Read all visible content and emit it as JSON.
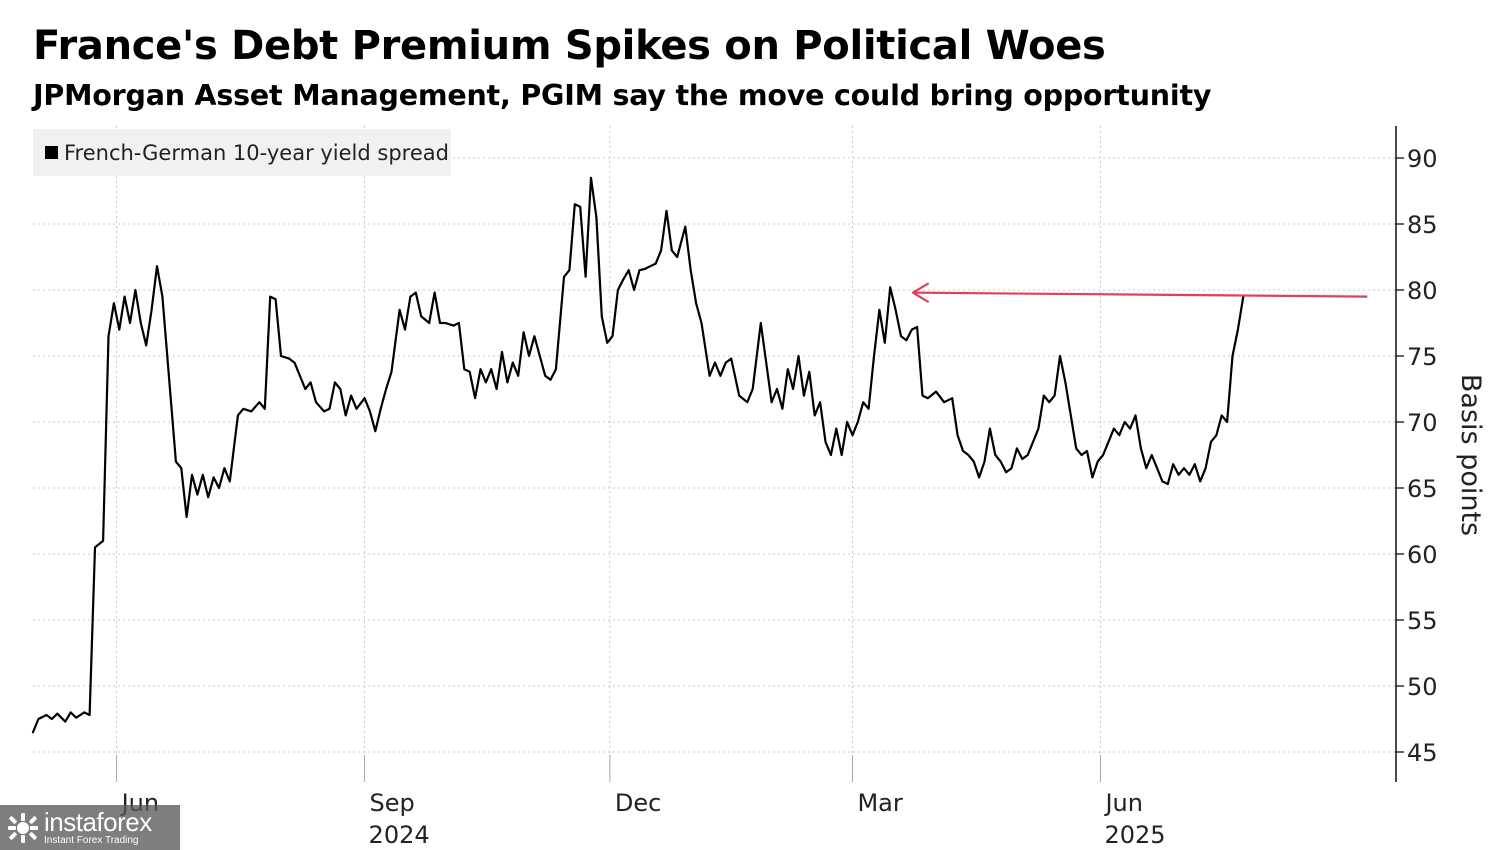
{
  "header": {
    "title": "France's Debt Premium Spikes on Political Woes",
    "subtitle": "JPMorgan Asset Management, PGIM say the move could bring opportunity"
  },
  "colors": {
    "line": "#000000",
    "arrow": "#e0405a",
    "grid": "#c8c8c8",
    "legend_bg": "#f1f1f1"
  },
  "watermark": {
    "name": "instaforex",
    "tagline": "Instant Forex Trading"
  },
  "chart_data": {
    "type": "line",
    "title": "France's Debt Premium Spikes on Political Woes",
    "subtitle": "JPMorgan Asset Management, PGIM say the move could bring opportunity",
    "xlabel": "",
    "ylabel": "Basis points",
    "ylim": [
      42,
      92
    ],
    "yticks": [
      45,
      50,
      55,
      60,
      65,
      70,
      75,
      80,
      85,
      90
    ],
    "xlim": [
      "2024-05-01",
      "2025-09-09"
    ],
    "xticks": [
      {
        "date": "2024-06-01",
        "label": "Jun",
        "year": ""
      },
      {
        "date": "2024-09-01",
        "label": "Sep",
        "year": "2024"
      },
      {
        "date": "2024-12-01",
        "label": "Dec",
        "year": ""
      },
      {
        "date": "2025-03-01",
        "label": "Mar",
        "year": ""
      },
      {
        "date": "2025-06-01",
        "label": "Jun",
        "year": "2025"
      }
    ],
    "y_axis_position": "right",
    "grid": "dotted",
    "legend_position": "top-left",
    "annotation": {
      "type": "arrow",
      "from": [
        "2025-09-08",
        79.5
      ],
      "to": [
        "2025-03-16",
        79.8
      ]
    },
    "series": [
      {
        "name": "French-German 10-year yield spread",
        "points": [
          [
            "2024-05-01",
            46.5
          ],
          [
            "2024-05-03",
            47.5
          ],
          [
            "2024-05-06",
            47.8
          ],
          [
            "2024-05-08",
            47.5
          ],
          [
            "2024-05-10",
            47.9
          ],
          [
            "2024-05-13",
            47.3
          ],
          [
            "2024-05-15",
            48.0
          ],
          [
            "2024-05-17",
            47.6
          ],
          [
            "2024-05-20",
            48.0
          ],
          [
            "2024-05-22",
            47.8
          ],
          [
            "2024-05-24",
            60.5
          ],
          [
            "2024-05-27",
            61.0
          ],
          [
            "2024-05-29",
            76.5
          ],
          [
            "2024-05-31",
            79.0
          ],
          [
            "2024-06-02",
            77.0
          ],
          [
            "2024-06-04",
            79.5
          ],
          [
            "2024-06-06",
            77.5
          ],
          [
            "2024-06-08",
            80.0
          ],
          [
            "2024-06-10",
            77.5
          ],
          [
            "2024-06-12",
            75.8
          ],
          [
            "2024-06-14",
            78.5
          ],
          [
            "2024-06-16",
            81.8
          ],
          [
            "2024-06-18",
            79.5
          ],
          [
            "2024-06-21",
            72.0
          ],
          [
            "2024-06-23",
            67.0
          ],
          [
            "2024-06-25",
            66.5
          ],
          [
            "2024-06-27",
            62.8
          ],
          [
            "2024-06-29",
            66.0
          ],
          [
            "2024-07-01",
            64.5
          ],
          [
            "2024-07-03",
            66.0
          ],
          [
            "2024-07-05",
            64.3
          ],
          [
            "2024-07-07",
            65.8
          ],
          [
            "2024-07-09",
            65.0
          ],
          [
            "2024-07-11",
            66.5
          ],
          [
            "2024-07-13",
            65.5
          ],
          [
            "2024-07-16",
            70.5
          ],
          [
            "2024-07-18",
            71.0
          ],
          [
            "2024-07-21",
            70.8
          ],
          [
            "2024-07-24",
            71.5
          ],
          [
            "2024-07-26",
            71.0
          ],
          [
            "2024-07-28",
            79.5
          ],
          [
            "2024-07-30",
            79.3
          ],
          [
            "2024-08-01",
            75.0
          ],
          [
            "2024-08-04",
            74.8
          ],
          [
            "2024-08-06",
            74.5
          ],
          [
            "2024-08-08",
            73.5
          ],
          [
            "2024-08-10",
            72.5
          ],
          [
            "2024-08-12",
            73.0
          ],
          [
            "2024-08-14",
            71.5
          ],
          [
            "2024-08-17",
            70.8
          ],
          [
            "2024-08-19",
            71.0
          ],
          [
            "2024-08-21",
            73.0
          ],
          [
            "2024-08-23",
            72.5
          ],
          [
            "2024-08-25",
            70.5
          ],
          [
            "2024-08-27",
            72.0
          ],
          [
            "2024-08-29",
            71.0
          ],
          [
            "2024-09-01",
            71.8
          ],
          [
            "2024-09-03",
            70.8
          ],
          [
            "2024-09-05",
            69.3
          ],
          [
            "2024-09-07",
            71.0
          ],
          [
            "2024-09-09",
            72.5
          ],
          [
            "2024-09-11",
            73.8
          ],
          [
            "2024-09-14",
            78.5
          ],
          [
            "2024-09-16",
            77.0
          ],
          [
            "2024-09-18",
            79.5
          ],
          [
            "2024-09-20",
            79.8
          ],
          [
            "2024-09-22",
            78.0
          ],
          [
            "2024-09-25",
            77.5
          ],
          [
            "2024-09-27",
            79.8
          ],
          [
            "2024-09-29",
            77.5
          ],
          [
            "2024-10-01",
            77.5
          ],
          [
            "2024-10-04",
            77.3
          ],
          [
            "2024-10-06",
            77.5
          ],
          [
            "2024-10-08",
            74.0
          ],
          [
            "2024-10-10",
            73.8
          ],
          [
            "2024-10-12",
            71.8
          ],
          [
            "2024-10-14",
            74.0
          ],
          [
            "2024-10-16",
            73.0
          ],
          [
            "2024-10-18",
            74.0
          ],
          [
            "2024-10-20",
            72.5
          ],
          [
            "2024-10-22",
            75.3
          ],
          [
            "2024-10-24",
            73.0
          ],
          [
            "2024-10-26",
            74.5
          ],
          [
            "2024-10-28",
            73.5
          ],
          [
            "2024-10-30",
            76.8
          ],
          [
            "2024-11-01",
            75.0
          ],
          [
            "2024-11-03",
            76.5
          ],
          [
            "2024-11-05",
            75.0
          ],
          [
            "2024-11-07",
            73.5
          ],
          [
            "2024-11-09",
            73.2
          ],
          [
            "2024-11-11",
            74.0
          ],
          [
            "2024-11-14",
            81.0
          ],
          [
            "2024-11-16",
            81.5
          ],
          [
            "2024-11-18",
            86.5
          ],
          [
            "2024-11-20",
            86.3
          ],
          [
            "2024-11-22",
            81.0
          ],
          [
            "2024-11-24",
            88.5
          ],
          [
            "2024-11-26",
            85.5
          ],
          [
            "2024-11-28",
            78.0
          ],
          [
            "2024-11-30",
            76.0
          ],
          [
            "2024-12-02",
            76.5
          ],
          [
            "2024-12-04",
            80.0
          ],
          [
            "2024-12-06",
            80.8
          ],
          [
            "2024-12-08",
            81.5
          ],
          [
            "2024-12-10",
            80.0
          ],
          [
            "2024-12-12",
            81.5
          ],
          [
            "2024-12-14",
            81.6
          ],
          [
            "2024-12-16",
            81.8
          ],
          [
            "2024-12-18",
            82.0
          ],
          [
            "2024-12-20",
            83.0
          ],
          [
            "2024-12-22",
            86.0
          ],
          [
            "2024-12-24",
            83.0
          ],
          [
            "2024-12-26",
            82.5
          ],
          [
            "2024-12-29",
            84.8
          ],
          [
            "2024-12-31",
            81.5
          ],
          [
            "2025-01-02",
            79.0
          ],
          [
            "2025-01-04",
            77.5
          ],
          [
            "2025-01-07",
            73.5
          ],
          [
            "2025-01-09",
            74.5
          ],
          [
            "2025-01-11",
            73.5
          ],
          [
            "2025-01-13",
            74.5
          ],
          [
            "2025-01-15",
            74.8
          ],
          [
            "2025-01-18",
            72.0
          ],
          [
            "2025-01-21",
            71.5
          ],
          [
            "2025-01-23",
            72.5
          ],
          [
            "2025-01-26",
            77.5
          ],
          [
            "2025-01-28",
            74.5
          ],
          [
            "2025-01-30",
            71.5
          ],
          [
            "2025-02-01",
            72.5
          ],
          [
            "2025-02-03",
            71.0
          ],
          [
            "2025-02-05",
            74.0
          ],
          [
            "2025-02-07",
            72.5
          ],
          [
            "2025-02-09",
            75.0
          ],
          [
            "2025-02-11",
            72.0
          ],
          [
            "2025-02-13",
            73.8
          ],
          [
            "2025-02-15",
            70.5
          ],
          [
            "2025-02-17",
            71.5
          ],
          [
            "2025-02-19",
            68.5
          ],
          [
            "2025-02-21",
            67.5
          ],
          [
            "2025-02-23",
            69.5
          ],
          [
            "2025-02-25",
            67.5
          ],
          [
            "2025-02-27",
            70.0
          ],
          [
            "2025-03-01",
            69.0
          ],
          [
            "2025-03-03",
            70.0
          ],
          [
            "2025-03-05",
            71.5
          ],
          [
            "2025-03-07",
            71.0
          ],
          [
            "2025-03-09",
            75.0
          ],
          [
            "2025-03-11",
            78.5
          ],
          [
            "2025-03-13",
            76.0
          ],
          [
            "2025-03-15",
            80.2
          ],
          [
            "2025-03-17",
            78.5
          ],
          [
            "2025-03-19",
            76.5
          ],
          [
            "2025-03-21",
            76.2
          ],
          [
            "2025-03-23",
            77.0
          ],
          [
            "2025-03-25",
            77.2
          ],
          [
            "2025-03-27",
            72.0
          ],
          [
            "2025-03-29",
            71.8
          ],
          [
            "2025-04-01",
            72.3
          ],
          [
            "2025-04-04",
            71.5
          ],
          [
            "2025-04-07",
            71.8
          ],
          [
            "2025-04-09",
            69.0
          ],
          [
            "2025-04-11",
            67.8
          ],
          [
            "2025-04-13",
            67.5
          ],
          [
            "2025-04-15",
            67.0
          ],
          [
            "2025-04-17",
            65.8
          ],
          [
            "2025-04-19",
            67.0
          ],
          [
            "2025-04-21",
            69.5
          ],
          [
            "2025-04-23",
            67.5
          ],
          [
            "2025-04-25",
            67.0
          ],
          [
            "2025-04-27",
            66.2
          ],
          [
            "2025-04-29",
            66.5
          ],
          [
            "2025-05-01",
            68.0
          ],
          [
            "2025-05-03",
            67.2
          ],
          [
            "2025-05-05",
            67.5
          ],
          [
            "2025-05-07",
            68.5
          ],
          [
            "2025-05-09",
            69.5
          ],
          [
            "2025-05-11",
            72.0
          ],
          [
            "2025-05-13",
            71.5
          ],
          [
            "2025-05-15",
            72.0
          ],
          [
            "2025-05-17",
            75.0
          ],
          [
            "2025-05-19",
            73.0
          ],
          [
            "2025-05-21",
            70.5
          ],
          [
            "2025-05-23",
            68.0
          ],
          [
            "2025-05-25",
            67.5
          ],
          [
            "2025-05-27",
            67.8
          ],
          [
            "2025-05-29",
            65.8
          ],
          [
            "2025-05-31",
            67.0
          ],
          [
            "2025-06-02",
            67.5
          ],
          [
            "2025-06-04",
            68.5
          ],
          [
            "2025-06-06",
            69.5
          ],
          [
            "2025-06-08",
            69.0
          ],
          [
            "2025-06-10",
            70.0
          ],
          [
            "2025-06-12",
            69.5
          ],
          [
            "2025-06-14",
            70.5
          ],
          [
            "2025-06-16",
            68.0
          ],
          [
            "2025-06-18",
            66.5
          ],
          [
            "2025-06-20",
            67.5
          ],
          [
            "2025-06-22",
            66.5
          ],
          [
            "2025-06-24",
            65.5
          ],
          [
            "2025-06-26",
            65.3
          ],
          [
            "2025-06-28",
            66.8
          ],
          [
            "2025-06-30",
            66.0
          ],
          [
            "2025-07-02",
            66.5
          ],
          [
            "2025-07-04",
            66.0
          ],
          [
            "2025-07-06",
            66.8
          ],
          [
            "2025-07-08",
            65.5
          ],
          [
            "2025-07-10",
            66.5
          ],
          [
            "2025-07-12",
            68.5
          ],
          [
            "2025-07-14",
            69.0
          ],
          [
            "2025-07-16",
            70.5
          ],
          [
            "2025-07-18",
            70.0
          ],
          [
            "2025-07-20",
            75.0
          ],
          [
            "2025-07-22",
            77.0
          ],
          [
            "2025-07-24",
            79.5
          ]
        ]
      }
    ]
  }
}
